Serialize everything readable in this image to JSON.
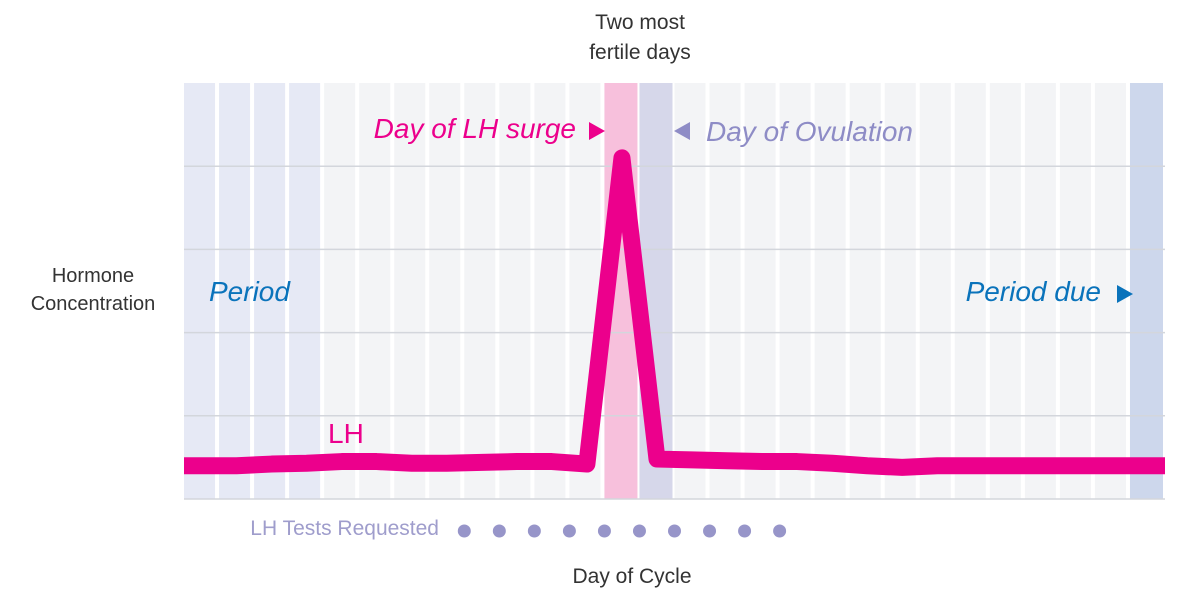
{
  "chart_data": {
    "type": "line",
    "title": "",
    "xlabel": "Day of Cycle",
    "ylabel": "Hormone Concentration",
    "days": 28,
    "ylim": [
      0,
      5
    ],
    "grid": true,
    "series": [
      {
        "name": "LH",
        "color": "#ec008c",
        "x": [
          0.5,
          1.5,
          2.5,
          3.5,
          4.5,
          5.5,
          6.5,
          7.5,
          8.5,
          9.5,
          10.5,
          11.5,
          12.5,
          13.5,
          14.5,
          15.5,
          16.5,
          17.5,
          18.5,
          19.5,
          20.5,
          21.5,
          22.5,
          23.5,
          24.5,
          25.5,
          26.5,
          27.5
        ],
        "values": [
          0.4,
          0.4,
          0.42,
          0.43,
          0.45,
          0.45,
          0.43,
          0.43,
          0.44,
          0.45,
          0.45,
          0.42,
          4.1,
          0.48,
          0.47,
          0.46,
          0.45,
          0.45,
          0.43,
          0.4,
          0.38,
          0.4,
          0.4,
          0.4,
          0.4,
          0.4,
          0.4,
          0.4
        ]
      }
    ],
    "bands": [
      {
        "label": "Period",
        "days": [
          1,
          2,
          3,
          4
        ],
        "color": "#e6e9f5",
        "label_color": "#0a73bb"
      },
      {
        "label": "Day of LH surge",
        "days": [
          13
        ],
        "color": "#f7c0dc",
        "label_color": "#ec008c"
      },
      {
        "label": "Day of Ovulation",
        "days": [
          14
        ],
        "color": "#d6d7ea",
        "label_color": "#8e8cc6"
      },
      {
        "label": "Period due",
        "days": [
          28
        ],
        "color": "#cdd7ec",
        "label_color": "#0a73bb"
      }
    ],
    "default_column_color": "#f3f4f6",
    "fertile_annotation": "Two most\nfertile days",
    "lh_tests": {
      "label": "LH Tests Requested",
      "days": [
        8,
        9,
        10,
        11,
        12,
        13,
        14,
        15,
        16,
        17
      ],
      "color": "#9795c9"
    }
  }
}
